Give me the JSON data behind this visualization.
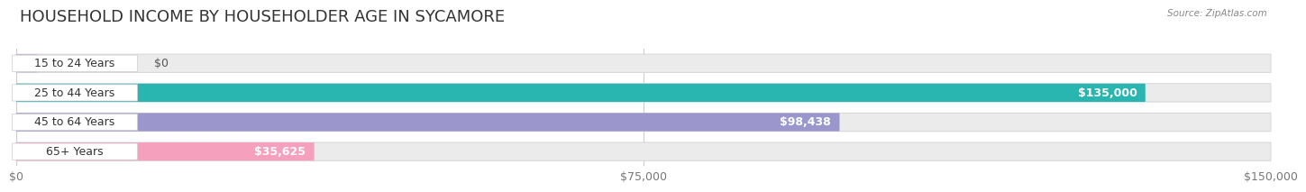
{
  "title": "HOUSEHOLD INCOME BY HOUSEHOLDER AGE IN SYCAMORE",
  "source": "Source: ZipAtlas.com",
  "categories": [
    "15 to 24 Years",
    "25 to 44 Years",
    "45 to 64 Years",
    "65+ Years"
  ],
  "values": [
    0,
    135000,
    98438,
    35625
  ],
  "bar_colors": [
    "#c9b0d5",
    "#29b5b0",
    "#9b97cc",
    "#f5a0bc"
  ],
  "bar_labels": [
    "$0",
    "$135,000",
    "$98,438",
    "$35,625"
  ],
  "label_outside": [
    true,
    false,
    false,
    false
  ],
  "xlim": [
    0,
    150000
  ],
  "xticks": [
    0,
    75000,
    150000
  ],
  "xtick_labels": [
    "$0",
    "$75,000",
    "$150,000"
  ],
  "background_color": "#ffffff",
  "bar_bg_color": "#ebebeb",
  "bar_bg_outline": "#d8d8d8",
  "title_fontsize": 13,
  "label_fontsize": 9,
  "tick_fontsize": 9,
  "value_label_outside_color": "#555555",
  "value_label_inside_color": "#ffffff",
  "category_label_bg": "#ffffff",
  "category_label_color": "#333333"
}
